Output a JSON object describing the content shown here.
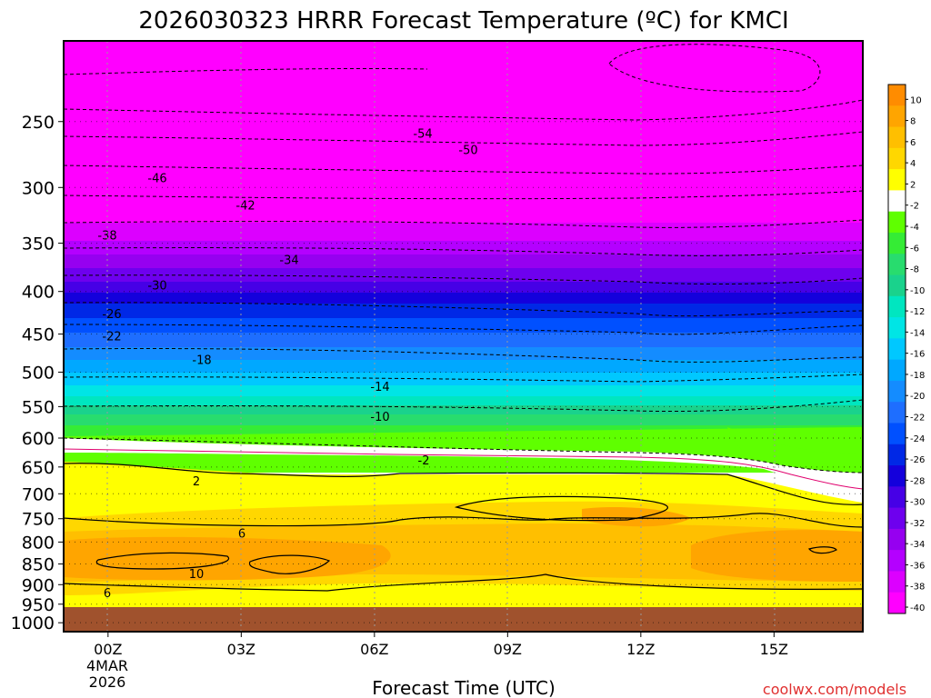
{
  "chart_data": {
    "type": "heatmap",
    "title": "2026030323 HRRR Forecast Temperature (ºC) for KMCI",
    "xlabel": "Forecast Time (UTC)",
    "x_ticks": [
      "00Z",
      "03Z",
      "06Z",
      "09Z",
      "12Z",
      "15Z"
    ],
    "x_start_label": [
      "4MAR",
      "2026"
    ],
    "x_range_hours": [
      -1,
      17
    ],
    "y_ticks": [
      250,
      300,
      350,
      400,
      450,
      500,
      550,
      600,
      650,
      700,
      750,
      800,
      850,
      900,
      950,
      1000
    ],
    "y_range_hpa": [
      200,
      1025
    ],
    "y_scale": "log",
    "ground_pressure_hpa": 975,
    "colorbar_levels": [
      10,
      8,
      6,
      4,
      2,
      -2,
      -4,
      -6,
      -8,
      -10,
      -12,
      -14,
      -16,
      -18,
      -20,
      -22,
      -24,
      -26,
      -28,
      -30,
      -32,
      -34,
      -36,
      -38,
      -40
    ],
    "colorbar_colors": [
      "#ff8c00",
      "#ffa500",
      "#ffbf00",
      "#ffd700",
      "#ffff00",
      "#ffffff",
      "#5fff00",
      "#35ec35",
      "#28dc6e",
      "#1ad28c",
      "#00e6c0",
      "#00e5e5",
      "#00c8ff",
      "#00a8ff",
      "#148cff",
      "#1e6eff",
      "#0050ff",
      "#0028e6",
      "#1400dc",
      "#4600e6",
      "#6e00ee",
      "#9600f0",
      "#b400ff",
      "#dc00ff",
      "#ff00ff"
    ],
    "contours": [
      {
        "label": "-54",
        "pressure_hpa": 258
      },
      {
        "label": "-50",
        "pressure_hpa": 270
      },
      {
        "label": "-46",
        "pressure_hpa": 292
      },
      {
        "label": "-42",
        "pressure_hpa": 315
      },
      {
        "label": "-38",
        "pressure_hpa": 342
      },
      {
        "label": "-34",
        "pressure_hpa": 366
      },
      {
        "label": "-30",
        "pressure_hpa": 393
      },
      {
        "label": "-26",
        "pressure_hpa": 425
      },
      {
        "label": "-22",
        "pressure_hpa": 452
      },
      {
        "label": "-18",
        "pressure_hpa": 483
      },
      {
        "label": "-14",
        "pressure_hpa": 520
      },
      {
        "label": "-10",
        "pressure_hpa": 565
      },
      {
        "label": "-2",
        "pressure_hpa": 637
      },
      {
        "label": "2",
        "pressure_hpa": 675
      },
      {
        "label": "6",
        "pressure_hpa": 780
      },
      {
        "label": "10",
        "pressure_hpa": 873
      },
      {
        "label": "6",
        "pressure_hpa": 920
      }
    ],
    "credit": "coolwx.com/models"
  }
}
